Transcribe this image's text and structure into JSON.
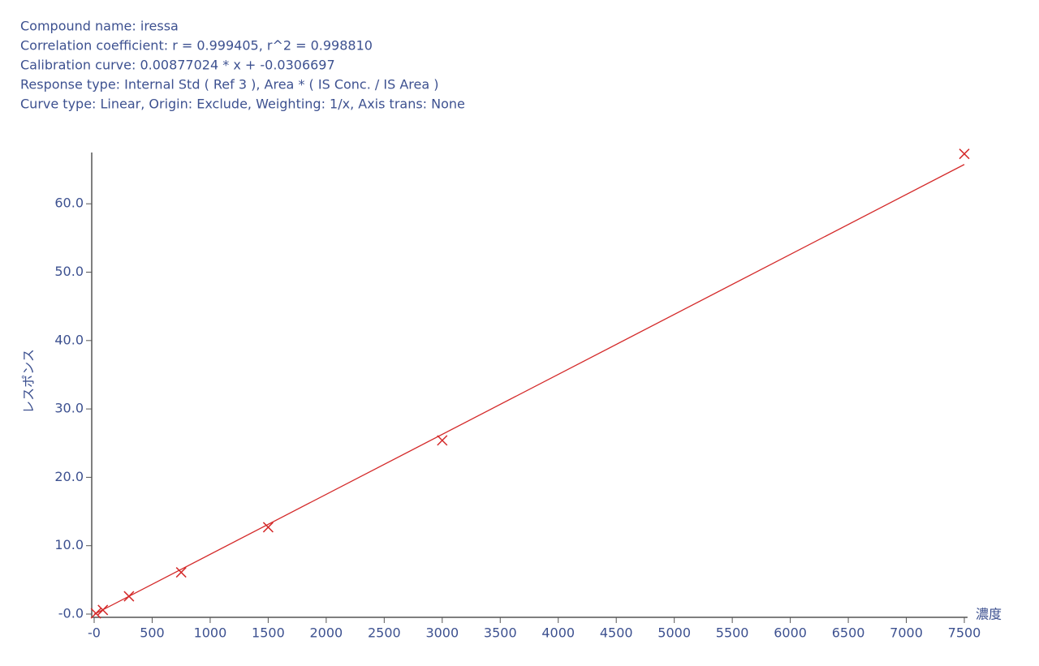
{
  "header": {
    "lines": [
      "Compound name: iressa",
      "Correlation coefficient: r = 0.999405, r^2 = 0.998810",
      "Calibration curve: 0.00877024 * x + -0.0306697",
      "Response type: Internal Std ( Ref 3 ), Area * ( IS Conc. / IS Area )",
      "Curve type: Linear, Origin: Exclude, Weighting: 1/x, Axis trans: None"
    ]
  },
  "chart_data": {
    "type": "scatter",
    "x_label": "濃度",
    "y_label": "レスポンス",
    "xlim": [
      0,
      7500
    ],
    "ylim": [
      0,
      67.5
    ],
    "xticks": [
      {
        "value": 0,
        "label": "-0"
      },
      500,
      1000,
      1500,
      2000,
      2500,
      3000,
      3500,
      4000,
      4500,
      5000,
      5500,
      6000,
      6500,
      7000,
      7500
    ],
    "yticks": [
      {
        "value": 0,
        "label": "-0.0"
      },
      {
        "value": 10,
        "label": "10.0"
      },
      {
        "value": 20,
        "label": "20.0"
      },
      {
        "value": 30,
        "label": "30.0"
      },
      {
        "value": 40,
        "label": "40.0"
      },
      {
        "value": 50,
        "label": "50.0"
      },
      {
        "value": 60,
        "label": "60.0"
      }
    ],
    "series": [
      {
        "kind": "points",
        "color": "#d42a2a",
        "x": [
          15,
          75,
          300,
          750,
          1500,
          3000,
          7500
        ],
        "values": [
          0.1,
          0.6,
          2.6,
          6.1,
          12.7,
          25.4,
          67.3
        ]
      },
      {
        "kind": "line",
        "color": "#d42a2a",
        "x": [
          0,
          7500
        ],
        "values": [
          -0.03,
          65.75
        ]
      }
    ]
  }
}
